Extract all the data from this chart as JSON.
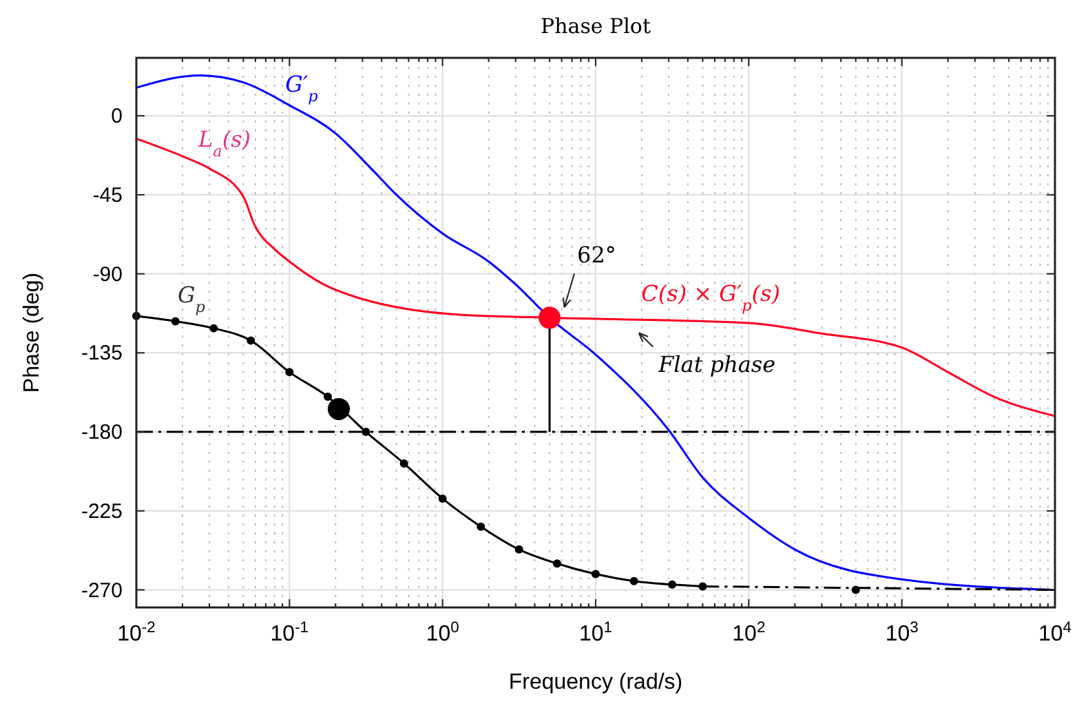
{
  "chart_data": {
    "type": "line",
    "title": "Phase Plot",
    "xlabel": "Frequency  (rad/s)",
    "ylabel": "Phase (deg)",
    "log": "x",
    "grid": true,
    "legend": false,
    "xlim": [
      0.01,
      10000
    ],
    "xticks": [
      {
        "value": 0.01,
        "label": "10$^{-2}$"
      },
      {
        "value": 0.1,
        "label": "10$^{-1}$"
      },
      {
        "value": 1,
        "label": "10$^{0}$"
      },
      {
        "value": 10,
        "label": "10$^{1}$"
      },
      {
        "value": 100,
        "label": "10$^{2}$"
      },
      {
        "value": 1000,
        "label": "10$^{3}$"
      },
      {
        "value": 10000,
        "label": "10$^{4}$"
      }
    ],
    "ylim": [
      -280,
      33
    ],
    "yticks": [
      0,
      -45,
      -90,
      -135,
      -180,
      -225,
      -270
    ],
    "series": [
      {
        "name": "G′$_{p}$",
        "color": "#0000ff",
        "marker": "none",
        "x": [
          0.01,
          0.026,
          0.05,
          0.1,
          0.2,
          0.35,
          0.5,
          1,
          2,
          3,
          5,
          10,
          30,
          50,
          100,
          200,
          1000,
          10000
        ],
        "values": [
          16,
          23,
          19,
          6,
          -10,
          -31,
          -45,
          -67,
          -83,
          -96,
          -115,
          -136,
          -179,
          -206,
          -229,
          -247,
          -264,
          -270
        ]
      },
      {
        "name": "C(s) × G′$_{p}$(s)",
        "color": "#ff0020",
        "marker": "none",
        "x": [
          0.01,
          0.02,
          0.03,
          0.05,
          0.059,
          0.08,
          0.1,
          0.167,
          0.29,
          0.58,
          1.16,
          5,
          100,
          300,
          1000,
          2000,
          4000,
          10000
        ],
        "values": [
          -13,
          -23,
          -30,
          -46,
          -62,
          -76,
          -83,
          -96,
          -104,
          -110,
          -113,
          -115,
          -118,
          -124,
          -132,
          -146,
          -160,
          -171
        ]
      },
      {
        "name": "G$_{p}$",
        "color": "#000000",
        "marker": "circle",
        "x": [
          0.01,
          0.018,
          0.032,
          0.056,
          0.1,
          0.178,
          0.316,
          0.56,
          1,
          1.78,
          3.16,
          5.6,
          10,
          17.8,
          31.6,
          50
        ],
        "values": [
          -114,
          -117,
          -121,
          -128,
          -146,
          -160,
          -180,
          -198,
          -218,
          -234,
          -247,
          -255,
          -261,
          -265,
          -267,
          -268
        ]
      },
      {
        "color": "#000000",
        "marker": "none",
        "line_style": "dashed",
        "x": [
          50,
          10000
        ],
        "values": [
          -268,
          -270
        ]
      },
      {
        "type": "scatter",
        "color": "#000000",
        "marker": "circle",
        "x": [
          500
        ],
        "values": [
          -270
        ]
      },
      {
        "color": "#000000",
        "marker": "none",
        "x": [
          5,
          5
        ],
        "values": [
          -115,
          -180
        ]
      },
      {
        "type": "scatter",
        "color": "#ff0020",
        "marker": "circle",
        "x": [
          5
        ],
        "values": [
          -115
        ]
      },
      {
        "type": "scatter",
        "color": "#000000",
        "marker": "circle",
        "x": [
          0.21
        ],
        "values": [
          -167
        ]
      }
    ],
    "ref_lines": [
      {
        "axis": "y",
        "value": -180,
        "color": "#000000",
        "line_style": "dashed"
      }
    ],
    "annotations": [
      {
        "text": "L$_{a}$(s)",
        "x": 0.03,
        "y": -27
      },
      {
        "text": "62°",
        "x": 5,
        "y": -115
      },
      {
        "text": "Flat phase",
        "x": 15,
        "y": -119
      }
    ]
  }
}
